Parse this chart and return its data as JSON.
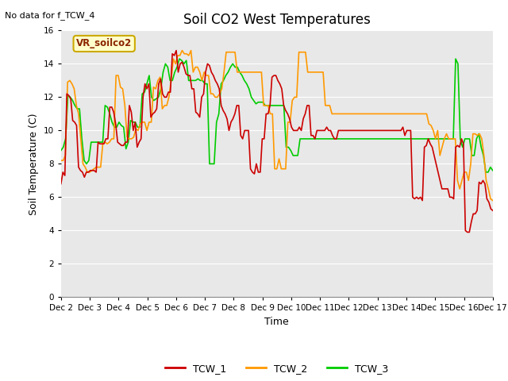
{
  "title": "Soil CO2 West Temperatures",
  "no_data_label": "No data for f_TCW_4",
  "annotation_label": "VR_soilco2",
  "xlabel": "Time",
  "ylabel": "Soil Temperature (C)",
  "ylim": [
    0,
    16
  ],
  "yticks": [
    0,
    2,
    4,
    6,
    8,
    10,
    12,
    14,
    16
  ],
  "xtick_labels": [
    "Dec 2",
    "Dec 3",
    "Dec 4",
    "Dec 5",
    "Dec 6",
    "Dec 7",
    "Dec 8",
    "Dec 9",
    "Dec 10",
    "Dec 11",
    "Dec 12",
    "Dec 13",
    "Dec 14",
    "Dec 15",
    "Dec 16",
    "Dec 17"
  ],
  "background_color": "#e8e8e8",
  "figure_color": "#ffffff",
  "line_colors": {
    "TCW_1": "#cc0000",
    "TCW_2": "#ff9900",
    "TCW_3": "#00cc00"
  },
  "line_width": 1.2,
  "TCW_1": [
    6.8,
    7.5,
    7.3,
    12.2,
    12.1,
    11.9,
    10.6,
    10.5,
    10.3,
    7.8,
    7.6,
    7.5,
    7.2,
    7.5,
    7.5,
    7.6,
    7.6,
    7.6,
    7.5,
    9.3,
    9.2,
    9.2,
    9.2,
    9.5,
    9.5,
    11.4,
    11.4,
    11.1,
    10.4,
    9.3,
    9.2,
    9.1,
    9.1,
    9.3,
    9.3,
    11.5,
    11.1,
    10.0,
    10.5,
    9.0,
    9.3,
    9.5,
    12.0,
    12.8,
    12.5,
    12.8,
    10.8,
    11.0,
    11.1,
    11.3,
    12.8,
    13.1,
    12.2,
    12.0,
    12.0,
    12.3,
    12.3,
    14.6,
    14.5,
    14.8,
    13.5,
    14.0,
    14.1,
    13.8,
    13.4,
    13.3,
    13.3,
    12.5,
    12.5,
    11.1,
    11.0,
    10.8,
    12.0,
    12.2,
    13.5,
    14.0,
    13.9,
    13.5,
    13.3,
    13.0,
    12.8,
    12.5,
    11.5,
    11.2,
    11.0,
    10.7,
    10.0,
    10.5,
    10.7,
    11.0,
    11.5,
    11.5,
    9.7,
    9.5,
    10.0,
    10.0,
    10.0,
    7.7,
    7.5,
    7.4,
    8.0,
    7.5,
    7.5,
    9.5,
    9.5,
    11.0,
    11.0,
    11.5,
    13.2,
    13.3,
    13.3,
    13.0,
    12.8,
    12.5,
    11.5,
    11.2,
    11.0,
    10.7,
    10.2,
    10.0,
    10.0,
    10.0,
    10.2,
    10.0,
    10.7,
    11.0,
    11.5,
    11.5,
    9.7,
    9.7,
    9.5,
    10.0,
    10.0,
    10.0,
    10.0,
    10.0,
    10.2,
    10.0,
    10.0,
    9.7,
    9.5,
    9.5,
    10.0,
    10.0,
    10.0,
    10.0,
    10.0,
    10.0,
    10.0,
    10.0,
    10.0,
    10.0,
    10.0,
    10.0,
    10.0,
    10.0,
    10.0,
    10.0,
    10.0,
    10.0,
    10.0,
    10.0,
    10.0,
    10.0,
    10.0,
    10.0,
    10.0,
    10.0,
    10.0,
    10.0,
    10.0,
    10.0,
    10.0,
    10.0,
    10.0,
    10.2,
    9.7,
    10.0,
    10.0,
    10.0,
    6.0,
    5.9,
    6.0,
    5.9,
    6.0,
    5.8,
    9.0,
    9.1,
    9.5,
    9.2,
    9.0,
    8.5,
    8.0,
    7.5,
    7.0,
    6.5,
    6.5,
    6.5,
    6.5,
    6.0,
    6.0,
    5.9,
    9.0,
    9.1,
    9.0,
    9.5,
    9.2,
    4.0,
    3.9,
    3.9,
    4.5,
    5.0,
    5.0,
    5.2,
    6.9,
    6.8,
    7.0,
    6.8,
    5.9,
    5.7,
    5.3,
    5.2
  ],
  "TCW_2": [
    8.2,
    8.2,
    8.5,
    12.9,
    13.0,
    12.8,
    12.5,
    11.5,
    11.0,
    9.5,
    8.0,
    7.8,
    7.5,
    7.5,
    7.6,
    7.7,
    7.8,
    7.8,
    7.8,
    9.2,
    9.3,
    9.2,
    9.3,
    9.5,
    9.5,
    13.3,
    13.3,
    12.6,
    12.5,
    11.5,
    9.6,
    9.5,
    9.5,
    9.6,
    10.1,
    10.0,
    10.4,
    10.5,
    10.5,
    10.0,
    10.5,
    10.5,
    12.6,
    12.5,
    13.0,
    13.2,
    11.3,
    11.5,
    11.5,
    12.0,
    13.0,
    14.3,
    14.0,
    14.5,
    14.5,
    14.8,
    14.6,
    14.6,
    14.5,
    14.8,
    13.5,
    13.8,
    13.8,
    13.5,
    13.0,
    13.5,
    13.3,
    13.3,
    12.2,
    12.2,
    12.0,
    12.0,
    12.2,
    12.5,
    13.5,
    14.7,
    14.7,
    14.7,
    14.7,
    14.7,
    13.5,
    13.5,
    13.5,
    13.5,
    13.5,
    13.5,
    13.5,
    13.5,
    13.5,
    13.5,
    13.5,
    13.5,
    11.5,
    11.5,
    11.5,
    11.0,
    11.0,
    7.7,
    7.7,
    8.3,
    7.7,
    7.7,
    7.7,
    10.5,
    10.5,
    11.8,
    12.0,
    12.0,
    14.7,
    14.7,
    14.7,
    14.7,
    13.5,
    13.5,
    13.5,
    13.5,
    13.5,
    13.5,
    13.5,
    13.5,
    11.5,
    11.5,
    11.5,
    11.0,
    11.0,
    11.0,
    11.0,
    11.0,
    11.0,
    11.0,
    11.0,
    11.0,
    11.0,
    11.0,
    11.0,
    11.0,
    11.0,
    11.0,
    11.0,
    11.0,
    11.0,
    11.0,
    11.0,
    11.0,
    11.0,
    11.0,
    11.0,
    11.0,
    11.0,
    11.0,
    11.0,
    11.0,
    11.0,
    11.0,
    11.0,
    11.0,
    11.0,
    11.0,
    11.0,
    11.0,
    11.0,
    11.0,
    11.0,
    11.0,
    11.0,
    11.0,
    11.0,
    10.4,
    10.3,
    10.0,
    9.5,
    10.0,
    8.5,
    9.0,
    9.5,
    9.8,
    9.5,
    9.5,
    9.5,
    9.5,
    7.0,
    6.5,
    7.0,
    7.5,
    7.5,
    7.0,
    8.0,
    9.8,
    9.8,
    9.7,
    9.8,
    9.5,
    8.5,
    7.0,
    6.5,
    5.9,
    5.8
  ],
  "TCW_3": [
    8.8,
    9.0,
    9.5,
    12.1,
    12.0,
    11.8,
    11.5,
    11.3,
    11.3,
    9.5,
    8.2,
    8.0,
    8.2,
    9.3,
    9.3,
    9.3,
    9.3,
    9.3,
    9.3,
    11.5,
    11.4,
    11.0,
    10.5,
    10.2,
    10.2,
    10.5,
    10.3,
    10.2,
    8.9,
    9.3,
    10.6,
    10.5,
    10.5,
    10.2,
    10.2,
    12.2,
    12.3,
    12.8,
    13.3,
    12.0,
    11.8,
    11.9,
    12.0,
    12.5,
    13.5,
    14.0,
    13.8,
    13.0,
    13.0,
    13.5,
    13.8,
    14.3,
    14.2,
    14.0,
    14.2,
    13.0,
    13.0,
    13.0,
    13.0,
    13.1,
    13.0,
    13.0,
    12.8,
    12.8,
    8.0,
    8.0,
    8.0,
    10.5,
    11.0,
    12.8,
    13.0,
    13.3,
    13.5,
    13.8,
    14.0,
    13.8,
    13.8,
    13.5,
    13.3,
    13.0,
    12.8,
    12.5,
    12.0,
    11.8,
    11.6,
    11.7,
    11.7,
    11.7,
    11.5,
    11.5,
    11.5,
    11.5,
    11.5,
    11.5,
    11.5,
    11.5,
    11.5,
    9.0,
    9.0,
    8.8,
    8.5,
    8.5,
    8.5,
    9.5,
    9.5,
    9.5,
    9.5,
    9.5,
    9.5,
    9.5,
    9.5,
    9.5,
    9.5,
    9.5,
    9.5,
    9.5,
    9.5,
    9.5,
    9.5,
    9.5,
    9.5,
    9.5,
    9.5,
    9.5,
    9.5,
    9.5,
    9.5,
    9.5,
    9.5,
    9.5,
    9.5,
    9.5,
    9.5,
    9.5,
    9.5,
    9.5,
    9.5,
    9.5,
    9.5,
    9.5,
    9.5,
    9.5,
    9.5,
    9.5,
    9.5,
    9.5,
    9.5,
    9.5,
    9.5,
    9.5,
    9.5,
    9.5,
    9.5,
    9.5,
    9.5,
    9.5,
    9.5,
    9.5,
    9.5,
    9.5,
    9.5,
    9.5,
    9.5,
    9.5,
    9.5,
    9.5,
    9.5,
    9.5,
    9.5,
    9.5,
    14.3,
    14.0,
    9.5,
    9.0,
    9.5,
    9.5,
    9.5,
    8.5,
    8.5,
    9.5,
    9.8,
    9.0,
    8.5,
    7.5,
    7.5,
    7.8,
    7.6
  ]
}
